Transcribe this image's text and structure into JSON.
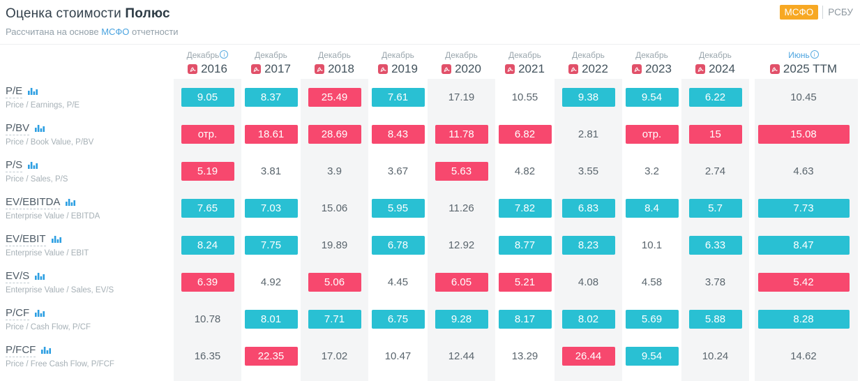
{
  "header": {
    "title_prefix": "Оценка стоимости ",
    "title_company": "Полюс",
    "subtitle_prefix": "Рассчитана на основе ",
    "subtitle_link": "МСФО",
    "subtitle_suffix": " отчетности",
    "toggle": {
      "active_label": "МСФО",
      "inactive_label": "РСБУ"
    }
  },
  "colors": {
    "teal": "#29c0d3",
    "pink": "#f7486e",
    "stripe": "#f4f5f6",
    "orange": "#f7a823",
    "blue": "#4aa3df",
    "pdf_red": "#e15069"
  },
  "columns": [
    {
      "id": "2016",
      "month": "Декабрь",
      "year": "2016",
      "info": true,
      "month_blue": false,
      "striped": true,
      "wide": false
    },
    {
      "id": "2017",
      "month": "Декабрь",
      "year": "2017",
      "info": false,
      "month_blue": false,
      "striped": false,
      "wide": false
    },
    {
      "id": "2018",
      "month": "Декабрь",
      "year": "2018",
      "info": false,
      "month_blue": false,
      "striped": true,
      "wide": false
    },
    {
      "id": "2019",
      "month": "Декабрь",
      "year": "2019",
      "info": false,
      "month_blue": false,
      "striped": false,
      "wide": false
    },
    {
      "id": "2020",
      "month": "Декабрь",
      "year": "2020",
      "info": false,
      "month_blue": false,
      "striped": true,
      "wide": false
    },
    {
      "id": "2021",
      "month": "Декабрь",
      "year": "2021",
      "info": false,
      "month_blue": false,
      "striped": false,
      "wide": false
    },
    {
      "id": "2022",
      "month": "Декабрь",
      "year": "2022",
      "info": false,
      "month_blue": false,
      "striped": true,
      "wide": false
    },
    {
      "id": "2023",
      "month": "Декабрь",
      "year": "2023",
      "info": false,
      "month_blue": false,
      "striped": false,
      "wide": false
    },
    {
      "id": "2024",
      "month": "Декабрь",
      "year": "2024",
      "info": false,
      "month_blue": false,
      "striped": true,
      "wide": false
    },
    {
      "id": "2025ttm",
      "month": "Июнь",
      "year": "2025 TTM",
      "info": true,
      "month_blue": true,
      "striped": true,
      "wide": true
    }
  ],
  "rows": [
    {
      "id": "pe",
      "label": "P/E",
      "description": "Price / Earnings, P/E",
      "cells": [
        {
          "v": "9.05",
          "c": "t"
        },
        {
          "v": "8.37",
          "c": "t"
        },
        {
          "v": "25.49",
          "c": "p"
        },
        {
          "v": "7.61",
          "c": "t"
        },
        {
          "v": "17.19",
          "c": "n"
        },
        {
          "v": "10.55",
          "c": "n"
        },
        {
          "v": "9.38",
          "c": "t"
        },
        {
          "v": "9.54",
          "c": "t"
        },
        {
          "v": "6.22",
          "c": "t"
        },
        {
          "v": "10.45",
          "c": "n"
        }
      ]
    },
    {
      "id": "pbv",
      "label": "P/BV",
      "description": "Price / Book Value, P/BV",
      "cells": [
        {
          "v": "отр.",
          "c": "p"
        },
        {
          "v": "18.61",
          "c": "p"
        },
        {
          "v": "28.69",
          "c": "p"
        },
        {
          "v": "8.43",
          "c": "p"
        },
        {
          "v": "11.78",
          "c": "p"
        },
        {
          "v": "6.82",
          "c": "p"
        },
        {
          "v": "2.81",
          "c": "n"
        },
        {
          "v": "отр.",
          "c": "p"
        },
        {
          "v": "15",
          "c": "p"
        },
        {
          "v": "15.08",
          "c": "p"
        }
      ]
    },
    {
      "id": "ps",
      "label": "P/S",
      "description": "Price / Sales, P/S",
      "cells": [
        {
          "v": "5.19",
          "c": "p"
        },
        {
          "v": "3.81",
          "c": "n"
        },
        {
          "v": "3.9",
          "c": "n"
        },
        {
          "v": "3.67",
          "c": "n"
        },
        {
          "v": "5.63",
          "c": "p"
        },
        {
          "v": "4.82",
          "c": "n"
        },
        {
          "v": "3.55",
          "c": "n"
        },
        {
          "v": "3.2",
          "c": "n"
        },
        {
          "v": "2.74",
          "c": "n"
        },
        {
          "v": "4.63",
          "c": "n"
        }
      ]
    },
    {
      "id": "ev-ebitda",
      "label": "EV/EBITDA",
      "description": "Enterprise Value / EBITDA",
      "cells": [
        {
          "v": "7.65",
          "c": "t"
        },
        {
          "v": "7.03",
          "c": "t"
        },
        {
          "v": "15.06",
          "c": "n"
        },
        {
          "v": "5.95",
          "c": "t"
        },
        {
          "v": "11.26",
          "c": "n"
        },
        {
          "v": "7.82",
          "c": "t"
        },
        {
          "v": "6.83",
          "c": "t"
        },
        {
          "v": "8.4",
          "c": "t"
        },
        {
          "v": "5.7",
          "c": "t"
        },
        {
          "v": "7.73",
          "c": "t"
        }
      ]
    },
    {
      "id": "ev-ebit",
      "label": "EV/EBIT",
      "description": "Enterprise Value / EBIT",
      "cells": [
        {
          "v": "8.24",
          "c": "t"
        },
        {
          "v": "7.75",
          "c": "t"
        },
        {
          "v": "19.89",
          "c": "n"
        },
        {
          "v": "6.78",
          "c": "t"
        },
        {
          "v": "12.92",
          "c": "n"
        },
        {
          "v": "8.77",
          "c": "t"
        },
        {
          "v": "8.23",
          "c": "t"
        },
        {
          "v": "10.1",
          "c": "n"
        },
        {
          "v": "6.33",
          "c": "t"
        },
        {
          "v": "8.47",
          "c": "t"
        }
      ]
    },
    {
      "id": "ev-s",
      "label": "EV/S",
      "description": "Enterprise Value / Sales, EV/S",
      "cells": [
        {
          "v": "6.39",
          "c": "p"
        },
        {
          "v": "4.92",
          "c": "n"
        },
        {
          "v": "5.06",
          "c": "p"
        },
        {
          "v": "4.45",
          "c": "n"
        },
        {
          "v": "6.05",
          "c": "p"
        },
        {
          "v": "5.21",
          "c": "p"
        },
        {
          "v": "4.08",
          "c": "n"
        },
        {
          "v": "4.58",
          "c": "n"
        },
        {
          "v": "3.78",
          "c": "n"
        },
        {
          "v": "5.42",
          "c": "p"
        }
      ]
    },
    {
      "id": "pcf",
      "label": "P/CF",
      "description": "Price / Cash Flow, P/CF",
      "cells": [
        {
          "v": "10.78",
          "c": "n"
        },
        {
          "v": "8.01",
          "c": "t"
        },
        {
          "v": "7.71",
          "c": "t"
        },
        {
          "v": "6.75",
          "c": "t"
        },
        {
          "v": "9.28",
          "c": "t"
        },
        {
          "v": "8.17",
          "c": "t"
        },
        {
          "v": "8.02",
          "c": "t"
        },
        {
          "v": "5.69",
          "c": "t"
        },
        {
          "v": "5.88",
          "c": "t"
        },
        {
          "v": "8.28",
          "c": "t"
        }
      ]
    },
    {
      "id": "pfcf",
      "label": "P/FCF",
      "description": "Price / Free Cash Flow, P/FCF",
      "cells": [
        {
          "v": "16.35",
          "c": "n"
        },
        {
          "v": "22.35",
          "c": "p"
        },
        {
          "v": "17.02",
          "c": "n"
        },
        {
          "v": "10.47",
          "c": "n"
        },
        {
          "v": "12.44",
          "c": "n"
        },
        {
          "v": "13.29",
          "c": "n"
        },
        {
          "v": "26.44",
          "c": "p"
        },
        {
          "v": "9.54",
          "c": "t"
        },
        {
          "v": "10.24",
          "c": "n"
        },
        {
          "v": "14.62",
          "c": "n"
        }
      ]
    }
  ]
}
